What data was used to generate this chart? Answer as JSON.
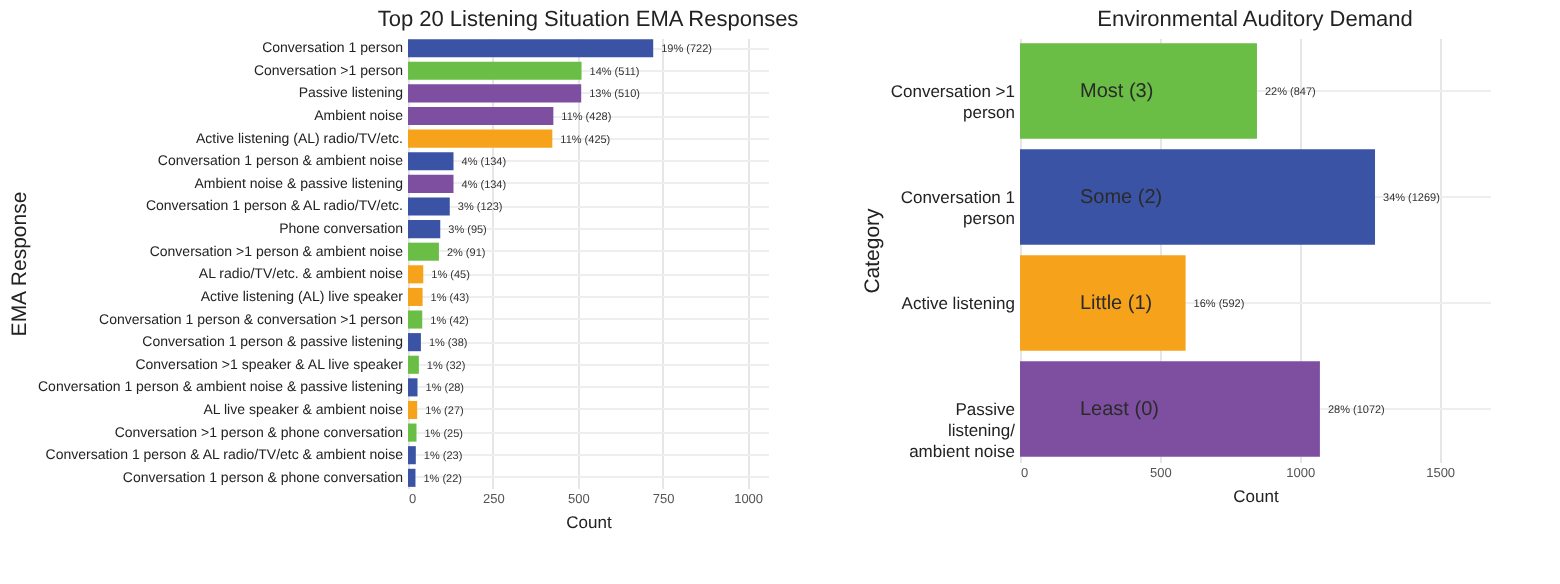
{
  "chart_data": [
    {
      "type": "bar",
      "orientation": "horizontal",
      "title": "Top 20 Listening Situation EMA Responses",
      "xlabel": "Count",
      "ylabel": "EMA Response",
      "categories": [
        "Conversation 1 person",
        "Conversation >1 person",
        "Passive listening",
        "Ambient noise",
        "Active listening (AL) radio/TV/etc.",
        "Conversation 1 person & ambient noise",
        "Ambient noise & passive listening",
        "Conversation 1 person & AL radio/TV/etc.",
        "Phone conversation",
        "Conversation >1 person & ambient noise",
        "AL radio/TV/etc. & ambient noise",
        "Active listening (AL) live speaker",
        "Conversation 1 person & conversation >1 person",
        "Conversation 1 person & passive listening",
        "Conversation >1 speaker & AL live speaker",
        "Conversation 1 person & ambient noise & passive listening",
        "AL live speaker & ambient noise",
        "Conversation >1 person & phone conversation",
        "Conversation 1 person & AL radio/TV/etc & ambient noise",
        "Conversation 1 person & phone conversation"
      ],
      "values": [
        722,
        511,
        510,
        428,
        425,
        134,
        134,
        123,
        95,
        91,
        45,
        43,
        42,
        38,
        32,
        28,
        27,
        25,
        23,
        22
      ],
      "colors": [
        "#3a53a4",
        "#6abd45",
        "#7e4fa0",
        "#7e4fa0",
        "#f6a31b",
        "#3a53a4",
        "#7e4fa0",
        "#3a53a4",
        "#3a53a4",
        "#6abd45",
        "#f6a31b",
        "#f6a31b",
        "#6abd45",
        "#3a53a4",
        "#6abd45",
        "#3a53a4",
        "#f6a31b",
        "#6abd45",
        "#3a53a4",
        "#3a53a4"
      ],
      "value_labels": [
        "19% (722)",
        "14% (511)",
        "13% (510)",
        "11% (428)",
        "11% (425)",
        "4% (134)",
        "4% (134)",
        "3% (123)",
        "3% (95)",
        "2% (91)",
        "1% (45)",
        "1% (43)",
        "1% (42)",
        "1% (38)",
        "1% (32)",
        "1% (28)",
        "1% (27)",
        "1% (25)",
        "1% (23)",
        "1% (22)"
      ],
      "xlim": [
        0,
        1060
      ],
      "xticks": [
        0,
        250,
        500,
        750,
        1000
      ],
      "grid": true
    },
    {
      "type": "bar",
      "orientation": "horizontal",
      "title": "Environmental Auditory Demand",
      "xlabel": "Count",
      "ylabel": "Category",
      "categories": [
        "Conversation >1 person",
        "Conversation 1 person",
        "Active listening",
        "Passive listening/ ambient noise"
      ],
      "values": [
        847,
        1269,
        592,
        1072
      ],
      "colors": [
        "#6abd45",
        "#3a53a4",
        "#f6a31b",
        "#7e4fa0"
      ],
      "value_labels": [
        "22% (847)",
        "34% (1269)",
        "16% (592)",
        "28% (1072)"
      ],
      "annotations": [
        "Most (3)",
        "Some (2)",
        "Little (1)",
        "Least (0)"
      ],
      "xlim": [
        0,
        1680
      ],
      "xticks": [
        0,
        500,
        1000,
        1500
      ],
      "grid": true
    }
  ]
}
